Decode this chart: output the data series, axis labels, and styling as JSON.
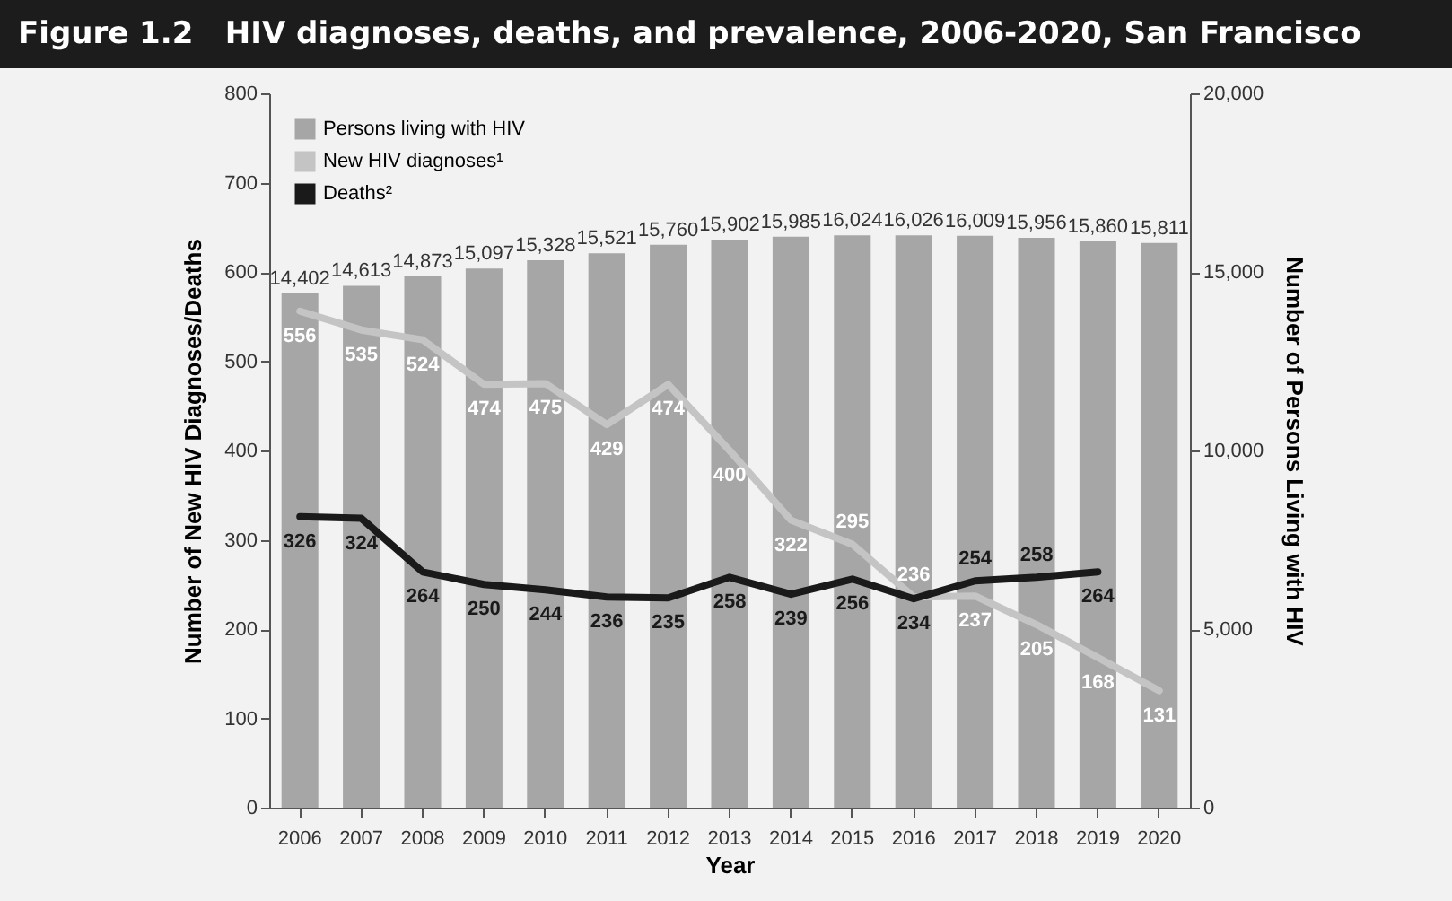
{
  "chart_data": {
    "type": "bar",
    "title": "Figure 1.2   HIV diagnoses, deaths, and prevalence, 2006-2020, San Francisco",
    "xlabel": "Year",
    "ylabel": "Number of New HIV Diagnoses/Deaths",
    "y2label": "Number of Persons Living with HIV",
    "categories": [
      "2006",
      "2007",
      "2008",
      "2009",
      "2010",
      "2011",
      "2012",
      "2013",
      "2014",
      "2015",
      "2016",
      "2017",
      "2018",
      "2019",
      "2020"
    ],
    "series": [
      {
        "name": "Persons living with HIV",
        "axis": "y2",
        "color": "#a6a6a6",
        "values": [
          14402,
          14613,
          14873,
          15097,
          15328,
          15521,
          15760,
          15902,
          15985,
          16024,
          16026,
          16009,
          15956,
          15860,
          15811
        ],
        "value_labels": [
          "14,402",
          "14,613",
          "14,873",
          "15,097",
          "15,328",
          "15,521",
          "15,760",
          "15,902",
          "15,985",
          "16,024",
          "16,026",
          "16,009",
          "15,956",
          "15,860",
          "15,811"
        ]
      },
      {
        "name": "New HIV diagnoses¹",
        "type": "line",
        "color": "#c4c4c4",
        "values": [
          556,
          535,
          524,
          474,
          475,
          429,
          474,
          400,
          322,
          295,
          236,
          237,
          205,
          168,
          131
        ]
      },
      {
        "name": "Deaths²",
        "type": "line",
        "color": "#1a1a1a",
        "values": [
          326,
          324,
          264,
          250,
          244,
          236,
          235,
          258,
          239,
          256,
          234,
          254,
          258,
          264,
          null
        ]
      }
    ],
    "ylim": [
      0,
      800
    ],
    "yticks": [
      0,
      100,
      200,
      300,
      400,
      500,
      600,
      700,
      800
    ],
    "y2lim": [
      0,
      20000
    ],
    "y2ticks": [
      0,
      {
        "value": 5000,
        "label": "5,000"
      },
      {
        "value": 10000,
        "label": "10,000"
      },
      {
        "value": 15000,
        "label": "15,000"
      },
      {
        "value": 20000,
        "label": "20,000"
      }
    ],
    "data_labels": true,
    "legend": "top left"
  }
}
